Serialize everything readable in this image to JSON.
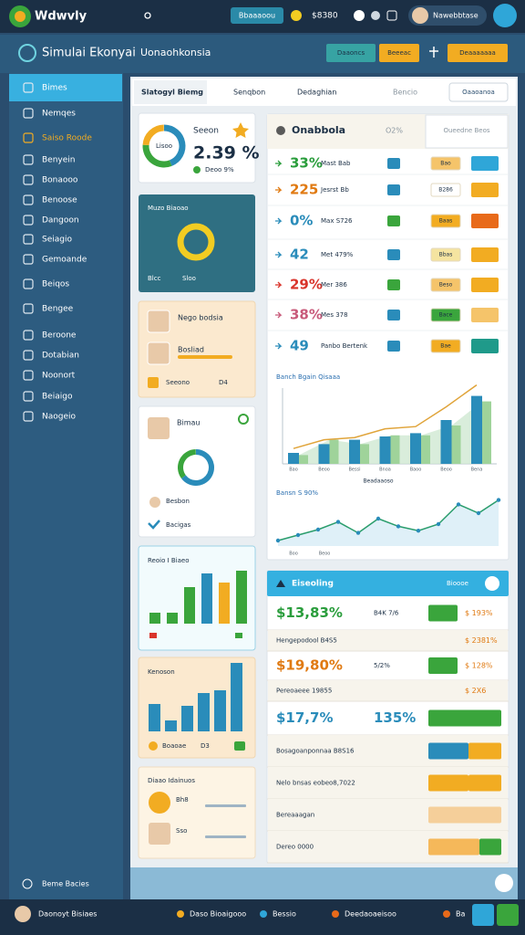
{
  "top_bar": {
    "logo": "Wdwvly",
    "button": "Bbaaaoou",
    "balance": "$8380",
    "user": "Nawebbtase"
  },
  "nav": {
    "title": "Simulai Ekonyai",
    "subtitle": "Uonaohkonsia",
    "buttons": [
      "Daaoncs",
      "Beeeac",
      "Deaaaaaaa"
    ]
  },
  "sidebar": {
    "items": [
      "Bimes",
      "Nemqes",
      "Saiso Roode",
      "Benyein",
      "Bonaooo",
      "Benoose",
      "Dangoon",
      "Seiagio",
      "Gemoande",
      "Beiqos",
      "Bengee",
      "Beroone",
      "Dotabian",
      "Noonort",
      "Beiaigo",
      "Naogeio"
    ],
    "footer": "Beme Bacies"
  },
  "tabs": {
    "items": [
      "Slatogyl Biemg",
      "Senqbon",
      "Dedaghian",
      "Bencio"
    ],
    "button": "Oaaoanoa"
  },
  "cards": {
    "summary": {
      "title": "Seeon",
      "donut_label": "Lisoo",
      "value": "2.39 %",
      "sub": "Deoo 9%"
    },
    "ring": {
      "title": "Muzo Biaoao",
      "footer": [
        "Blcc",
        "Sloo"
      ]
    },
    "people": {
      "names": [
        "Nego bodsia",
        "Bosliad"
      ],
      "footer": [
        "Seeono",
        "D4"
      ]
    },
    "profile": {
      "title": "Bimau",
      "footer": [
        "Besbon",
        "Bacigas"
      ]
    },
    "bars_a": {
      "title": "Reoio I Biaeo",
      "values": [
        12,
        12,
        40,
        55,
        45,
        58
      ],
      "colors": [
        "#3aa53c",
        "#3aa53c",
        "#3aa53c",
        "#2a8cba",
        "#f2ac22",
        "#3aa53c"
      ]
    },
    "bars_b": {
      "title": "Kenoson",
      "values": [
        30,
        12,
        28,
        42,
        45,
        75
      ],
      "color": "#2a8cba",
      "footer": [
        "Boaoae",
        "D3"
      ]
    },
    "list": {
      "title": "Diaao Idainuos",
      "rows": [
        "Bh8",
        "Sso"
      ]
    }
  },
  "table": {
    "header": [
      "Onabbola",
      "O2%",
      "Oueedne Beos"
    ],
    "rows": [
      {
        "pct": "33%",
        "color": "#2a9d3c",
        "label": "Mast Bab",
        "badge": "#2a8cba",
        "tag": "Bao",
        "tag_color": "#f5c46a",
        "btn_color": "#2fa6d8"
      },
      {
        "pct": "225",
        "color": "#e07a12",
        "label": "Jesrst Bb",
        "badge": "#2a8cba",
        "tag": "B286",
        "tag_color": "#ffffff",
        "btn_color": "#f2ac22"
      },
      {
        "pct": "0%",
        "color": "#2a8cba",
        "label": "Max S726",
        "badge": "#3aa53c",
        "tag": "Baas",
        "tag_color": "#f2ac22",
        "btn_color": "#e86a1a"
      },
      {
        "pct": "42",
        "color": "#2a8cba",
        "label": "Met 479%",
        "badge": "#2a8cba",
        "tag": "Bbas",
        "tag_color": "#f5e4a0",
        "btn_color": "#f2ac22"
      },
      {
        "pct": "29%",
        "color": "#d9342b",
        "label": "Mer 386",
        "badge": "#3aa53c",
        "tag": "Beso",
        "tag_color": "#f5c46a",
        "btn_color": "#f2ac22"
      },
      {
        "pct": "38%",
        "color": "#c85a7a",
        "label": "Mes 378",
        "badge": "#2a8cba",
        "tag": "Bace",
        "tag_color": "#3aa53c",
        "btn_color": "#f5c46a"
      },
      {
        "pct": "49",
        "color": "#2a8cba",
        "label": "Panbo Bertenk",
        "badge": "#2a8cba",
        "tag": "Bae",
        "tag_color": "#f2ac22",
        "btn_color": "#1f9a8a"
      }
    ]
  },
  "combo_chart": {
    "title": "Banch Bgain Qisaaa",
    "categories": [
      "Bao",
      "Beoo",
      "Bessi",
      "Bnoa",
      "Baoo",
      "Beoo",
      "Bena"
    ],
    "caption": "Beadaaoso",
    "bars": [
      10,
      18,
      22,
      25,
      28,
      40,
      62
    ],
    "bars2": [
      8,
      22,
      18,
      26,
      26,
      35,
      57
    ],
    "line": [
      14,
      22,
      24,
      32,
      34,
      52,
      72
    ]
  },
  "line_chart": {
    "title": "Bansn S 90%",
    "values": [
      5,
      10,
      15,
      22,
      12,
      25,
      18,
      14,
      20,
      38,
      30,
      42
    ],
    "labels": [
      "Boo",
      "Beoo"
    ]
  },
  "panel": {
    "title": "Eiseoling",
    "button": "Bioooe",
    "rows": [
      {
        "text": "$13,83%",
        "big": true,
        "color": "#2a9d3c",
        "mid": "B4K 7/6",
        "right": "$ 193%",
        "pills": [
          {
            "color": "#3aa53c",
            "w": 32
          }
        ]
      },
      {
        "text": "Hengepodool B4S5",
        "mid": "",
        "right": "$ 2381%",
        "pills": []
      },
      {
        "text": "$19,80%",
        "big": true,
        "color": "#e07a12",
        "mid": "5/2%",
        "right": "$ 128%",
        "pills": [
          {
            "color": "#3aa53c",
            "w": 32
          }
        ]
      },
      {
        "text": "Pereoaeee 19855",
        "mid": "",
        "right": "$ 2X6",
        "pills": []
      },
      {
        "text": "$17,7%",
        "big": true,
        "color": "#2a8cba",
        "mid": "135%",
        "right": "",
        "pills": [
          {
            "color": "#3aa53c",
            "w": 80
          }
        ]
      },
      {
        "text": "Bosagoanponnaa B8S16",
        "mid": "",
        "right": "",
        "pills": [
          {
            "color": "#2a8cba",
            "w": 44
          },
          {
            "color": "#f2ac22",
            "w": 36
          }
        ]
      },
      {
        "text": "Nelo bnsas eobeo8,7022",
        "mid": "",
        "right": "",
        "pills": [
          {
            "color": "#f2ac22",
            "w": 44
          },
          {
            "color": "#f2ac22",
            "w": 36
          }
        ]
      },
      {
        "text": "Bereaaagan",
        "mid": "",
        "right": "",
        "pills": [
          {
            "color": "#f5cf9a",
            "w": 80
          }
        ]
      },
      {
        "text": "Dereo 0000",
        "mid": "",
        "right": "",
        "pills": [
          {
            "color": "#f5b85a",
            "w": 56
          },
          {
            "color": "#3aa53c",
            "w": 24
          }
        ]
      }
    ]
  },
  "bottom_bar": {
    "items": [
      "Daonoyt Bisiaes",
      "Daso Bioaigooo",
      "Bessio",
      "Deedaoaeisoo",
      "Ba"
    ]
  }
}
